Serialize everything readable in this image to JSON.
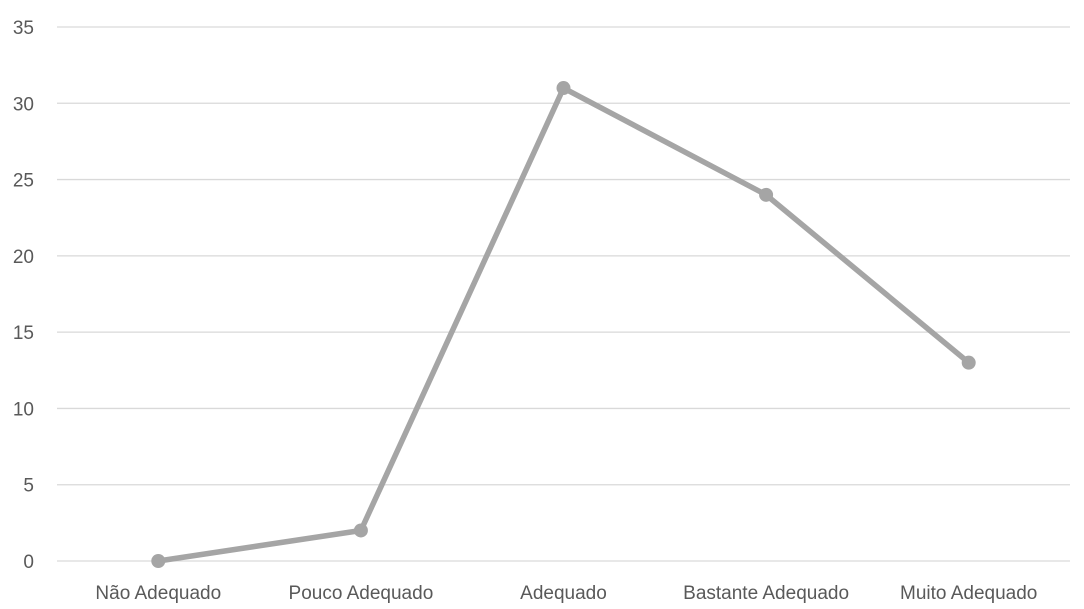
{
  "chart_data": {
    "type": "line",
    "categories": [
      "Não Adequado",
      "Pouco Adequado",
      "Adequado",
      "Bastante Adequado",
      "Muito Adequado"
    ],
    "series": [
      {
        "values": [
          0,
          2,
          31,
          24,
          13
        ]
      }
    ],
    "yticks": [
      "0",
      "5",
      "10",
      "15",
      "20",
      "25",
      "30",
      "35"
    ],
    "ylim": [
      0,
      35
    ],
    "ystep": 5,
    "grid": true,
    "legend": "none",
    "colors": {
      "line": "#a5a5a5",
      "grid": "#d9d9d9",
      "text": "#595959"
    }
  }
}
